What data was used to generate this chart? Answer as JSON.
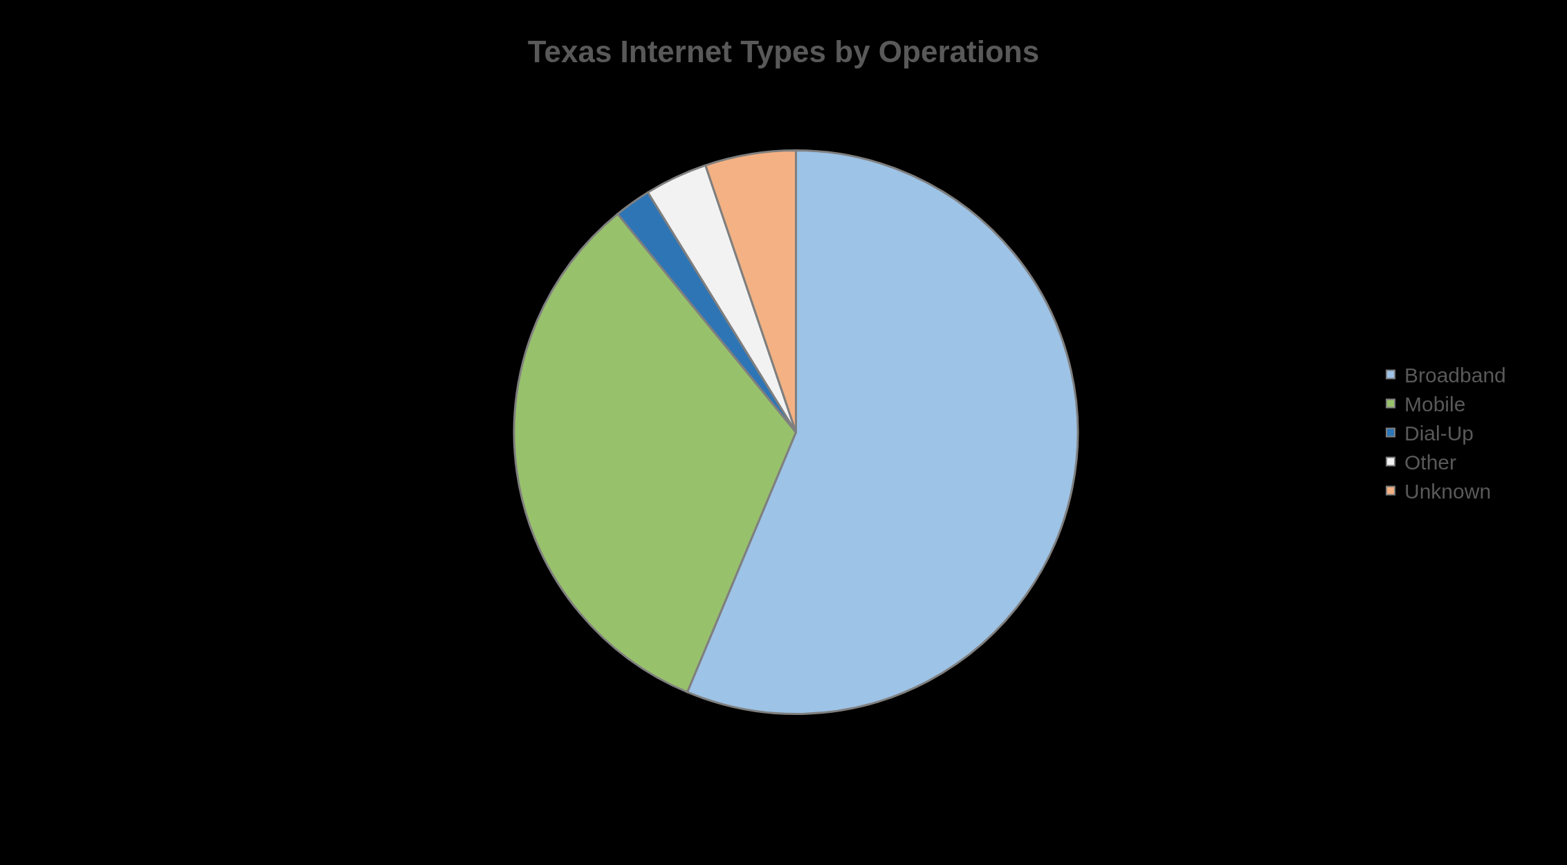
{
  "chart_data": {
    "type": "pie",
    "title": "Texas Internet Types by Operations",
    "categories": [
      "Broadband",
      "Mobile",
      "Dial-Up",
      "Other",
      "Unknown"
    ],
    "values": [
      56.3,
      32.8,
      2.1,
      3.6,
      5.2
    ],
    "colors": [
      "#9dc3e6",
      "#98c16c",
      "#2e75b6",
      "#f2f2f2",
      "#f4b183"
    ],
    "legend": "right"
  }
}
